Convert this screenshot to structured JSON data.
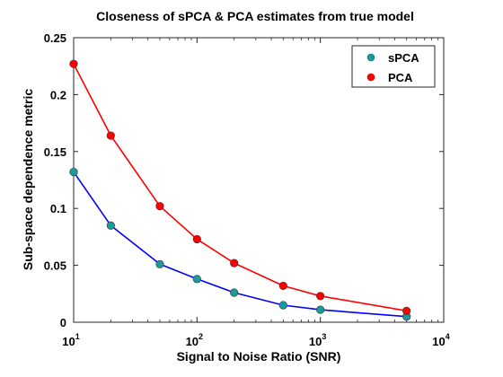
{
  "chart_data": {
    "type": "line",
    "title": "Closeness of sPCA & PCA estimates from true model",
    "xlabel": "Signal to Noise Ratio (SNR)",
    "ylabel": "Sub-space dependence metric",
    "xscale": "log",
    "xlim": [
      10,
      10000
    ],
    "ylim": [
      0,
      0.25
    ],
    "x_ticks": [
      {
        "base": "10",
        "exp": "1",
        "value": 10
      },
      {
        "base": "10",
        "exp": "2",
        "value": 100
      },
      {
        "base": "10",
        "exp": "3",
        "value": 1000
      },
      {
        "base": "10",
        "exp": "4",
        "value": 10000
      }
    ],
    "y_ticks": [
      {
        "label": "0",
        "value": 0
      },
      {
        "label": "0.05",
        "value": 0.05
      },
      {
        "label": "0.1",
        "value": 0.1
      },
      {
        "label": "0.15",
        "value": 0.15
      },
      {
        "label": "0.2",
        "value": 0.2
      },
      {
        "label": "0.25",
        "value": 0.25
      }
    ],
    "grid": false,
    "legend_position": "top-right",
    "x": [
      10,
      20,
      50,
      100,
      200,
      500,
      1000,
      5000
    ],
    "series": [
      {
        "name": "sPCA",
        "line_color": "#0000ff",
        "marker_color": "#1a9a9a",
        "values": [
          0.132,
          0.085,
          0.051,
          0.038,
          0.026,
          0.015,
          0.011,
          0.005
        ]
      },
      {
        "name": "PCA",
        "line_color": "#ff0000",
        "marker_color": "#ff0000",
        "values": [
          0.227,
          0.164,
          0.102,
          0.073,
          0.052,
          0.032,
          0.023,
          0.01
        ]
      }
    ]
  }
}
